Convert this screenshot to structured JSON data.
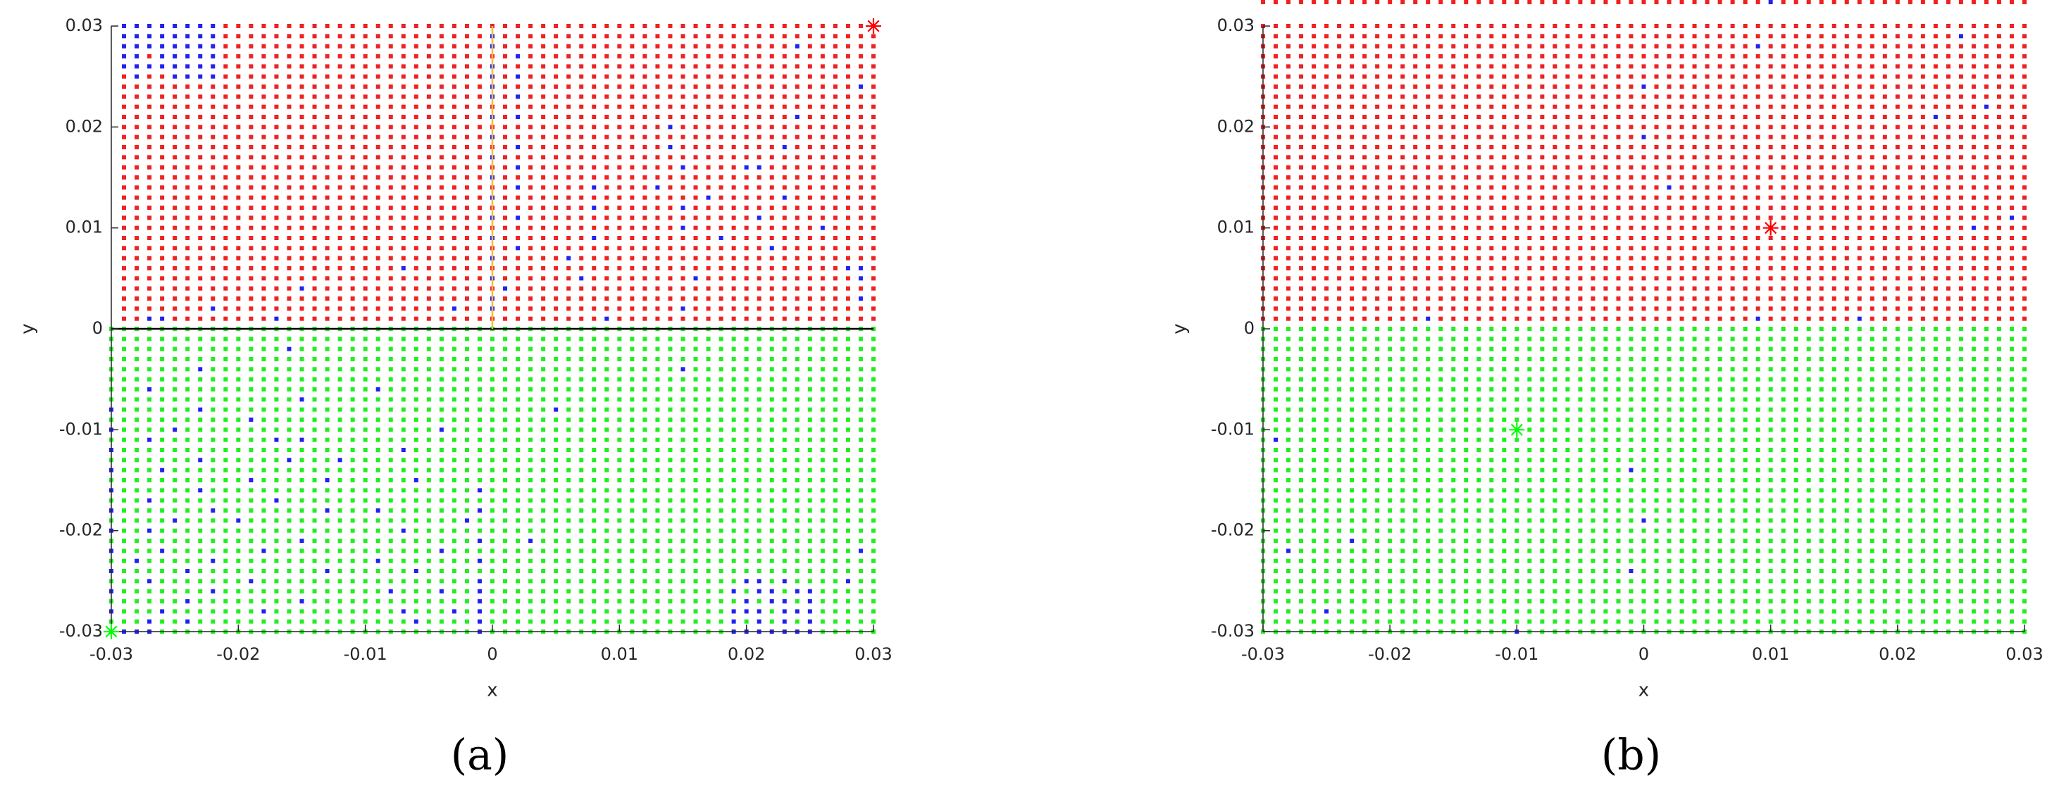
{
  "chart_data": [
    {
      "type": "scatter",
      "label": "(a)",
      "xlabel": "x",
      "ylabel": "y",
      "xlim": [
        -0.03,
        0.03
      ],
      "ylim": [
        -0.03,
        0.03
      ],
      "xticks": [
        -0.03,
        -0.02,
        -0.01,
        0,
        0.01,
        0.02,
        0.03
      ],
      "yticks": [
        -0.03,
        -0.02,
        -0.01,
        0,
        0.01,
        0.02,
        0.03
      ],
      "x": [
        -0.03,
        -0.029,
        -0.028,
        -0.027,
        -0.026,
        -0.025,
        -0.024,
        -0.023,
        -0.022,
        -0.021,
        -0.02,
        -0.019,
        -0.018,
        -0.017,
        -0.016,
        -0.015,
        -0.014,
        -0.013,
        -0.012,
        -0.011,
        -0.01,
        -0.009,
        -0.008,
        -0.007,
        -0.006,
        -0.005,
        -0.004,
        -0.003,
        -0.002,
        -0.001,
        0,
        0.001,
        0.002,
        0.003,
        0.004,
        0.005,
        0.006,
        0.007,
        0.008,
        0.009,
        0.01,
        0.011,
        0.012,
        0.013,
        0.014,
        0.015,
        0.016,
        0.017,
        0.018,
        0.019,
        0.02,
        0.021,
        0.022,
        0.023,
        0.024,
        0.025,
        0.026,
        0.027,
        0.028,
        0.029,
        0.03
      ],
      "y": [
        -0.03,
        -0.029,
        -0.028,
        -0.027,
        -0.026,
        -0.025,
        -0.024,
        -0.023,
        -0.022,
        -0.021,
        -0.02,
        -0.019,
        -0.018,
        -0.017,
        -0.016,
        -0.015,
        -0.014,
        -0.013,
        -0.012,
        -0.011,
        -0.01,
        -0.009,
        -0.008,
        -0.007,
        -0.006,
        -0.005,
        -0.004,
        -0.003,
        -0.002,
        -0.001,
        0,
        0.001,
        0.002,
        0.003,
        0.004,
        0.005,
        0.006,
        0.007,
        0.008,
        0.009,
        0.01,
        0.011,
        0.012,
        0.013,
        0.014,
        0.015,
        0.016,
        0.017,
        0.018,
        0.019,
        0.02,
        0.021,
        0.022,
        0.023,
        0.024,
        0.025,
        0.026,
        0.027,
        0.028,
        0.029,
        0.03
      ],
      "colors": {
        "r": "#ee2222",
        "g": "#22ee22",
        "b": "#2222ee"
      },
      "rows": [
        "gbbbgggggg gggggggggg gggggggggb gggggggggg gggggggggb bbbbbbgggg g",
        "gggbggbggg gggggggggg ggggbggggb gggggggggg gggggggggb gbgbgbgggg g",
        "bgggbggggg ggbggggggg gggbgggbgb gggggggggg gggggggggb bbgbbbgggg g",
        "ggggggbggg gggggbgggg gggggggggb gggggggggg gggggggggg bgbbgbgggg g",
        "bgggggggbg gggggggggg ggbgggbggb gggggggggg gggggggggb gbbgbbgggg g",
        "gggbgggggg gbgggggggg gggggggggb gggggggggg gggggggggg bbgbggggbg g",
        "bgggggbggg gggggggbgg ggggbggggg gggggggggg gggggggggg gggggggggg g",
        "ggbgggggbg gggggggggg gbgggggggb gggggggggg gggggggggg gggggggggg g",
        "bgggbggggg ggbggggggg ggggggbggg gggggggggg gggggggggg gggggggggb g",
        "gggggggggg gggggbgggg gggggggggb gggbgggggg gggggggggg gggggggggg g",
        "bggbgggggg gggggggggg gggbgggggg gggggggggg gggggggggg gggggggggg g",
        "gggggbgggg bggggggggg ggggggggbg gggggggggg gggggggggg gggggggggg g",
        "bgggggggbg gggggggbgg gbgggggggb gggggggggg gggggggggg gggggggggg g",
        "gggbgggggg gggbgggggg gggggggggg gggggggggg gggggggggg gggggggggg g",
        "bggggggbgg gggggggggg gggggggggb gggggggggg gggggggggg gggggggggg g",
        "gggggggggg gbgggggbgg ggggbggggg gggggggggg gggggggggg gggggggggg g",
        "bgggbggggg gggggggggg gggggggggg gggggggggg gggggggggg gggggggggg g",
        "gggggggbgg ggggbgggbg gggggggggg gggggggggg gggggggggg gggggggggg g",
        "bggggggggg gggggggggg gggbgggggg gggggggggg gggggggggg gggggggggg g",
        "gggbgggggg gggbgbgggg gggggggggg gggggggggg gggggggggg gggggggggg g",
        "bggggbgggg gggggggggg ggggggbggg gggggggggg gggggggggg gggggggggg g",
        "gggggggggg gbgggggggg gggggggggg gggggggggg gggggggggg gggggggggg g",
        "bggggggbgg gggggggggg gggggggggg gggggbgggg gggggggggg gggggggggg g",
        "gggggggggg gggggbgggg gggggggggg gggggggggg gggggggggg gggggggggg g",
        "gggbgggggg gggggggggg gbgggggggg gggggggggg gggggggggg gggggggggg g",
        "gggggggggg gggggggggg gggggggggg gggggggggg gggggggggg gggggggggg g",
        "gggggggbgg gggggggggg gggggggggg gggggggggg gggggbgggg gggggggggg g",
        "gggggggggg gggggggggg gggggggggg gggggggggg gggggggggg gggggggggg g",
        "gggggggggg ggggbggggg gggggggggg gggggggggg gggggggggg gggggggggg g",
        "gggggggggg gggggggggg gggggggggg gggggggggg gggggggggg gggggggggg g",
        "gggggggggg gggggggggg gggggggggg gggggggggg gggggggggg gggggggggg g",
        ".rrbbrrrrr rrrbrrrrrr rrrrrrrrrr rrrrrrrrrb rrrrrrrrrr rrrrrrrrrr r",
        ".rrrrrrrbr rrrrrrrrrr rrrrrrrbrr brrrrrrrrr rrrrrbrrrr rrrrrrrrrr r",
        ".rrrrrrrrr rrrrrrrrrr rrrrrrrrrr brrrrrrrrr rrrrrrrrrr rrrrrrrrrb r",
        ".rrrrrrrrr rrrrrbrrrr rrrrrrrrrr rbrrrrrrrr rrrrrrrrrr rrrrrrrrrr r",
        ".rrrrrrrrr rrrrrrrrrr rrrrrrrrrr brrrrrrbrr rrrrrrbrrr rrrrrrrrrb r",
        ".rrrrrrrrr rrrrrrrrrr rrrbrrrrrr rrrrrrrrrr rrrrrrrrrr rrrrrrrrbb r",
        ".rrrrrrrrr rrrrrrrrrr rrrrrrrrrr brrrrrbrrr rrrrrrrrrr rrrrrrrrrr r",
        ".rrrrrrrrr rrrrrrrrrr rrrrrrrrrr rrbrrrrrrr rrrrrrrrrr rrbrrrrrrr r",
        ".rrrrrrrrr rrrrrrrrrr rrrrrrrrrr brrrrrrrbr rrrrrrrrbr rrrrrrrrrr r",
        ".rrrrrrrrr rrrrrrrrrr rrrrrrrrrr rrrrrrrrrr rrrrrbrrrr rrrrrrbrrr r",
        ".rrrrrrrrr rrrrrrrrrr rrrrrrrrrr brbrrrrrrr rrrrrrrrrr rbrrrrrrrr r",
        ".rrrrrrrrr rrrrrrrrrr rrrrrrrrrr rrrrrrrrbr rrrrrbrrrr rrrrrrrrrr r",
        ".rrrrrrrrr rrrrrrrrrr rrrrrrrrrr brrrrrrrrr rrrrrrrbrr rrrbrrrrrr r",
        ".rrrrrrrrr rrrrrrrrrr rrrrrrrrrr rrbrrrrrbr rrrbrrrrrr rrrrrrrrrr r",
        ".rrrrrrrrr rrrrrrrrrr rrrrrrrrrr brrrrrrrrr rrrrrrrrrr rrrrrrrrrr r",
        ".rrrrrrrrr rrrrrrrrrr rrrrrrrrrr rrbrrrrrrr rrrrrbrrrr bbrrrrrrrr r",
        ".rrrrrrrrr rrrrrrrrrr rrrrrrrrrr brrrrrrrrr rrrrrrrrrr rrrrrrrrrr r",
        ".rrrrrrrrr rrrrrrrrrr rrrrrrrrrr rrbrrrrrrr rrrrbrrrrr rrrbrrrrrr r",
        ".rrrrrrrrr rrrrrrrrrr rrrrrrrrrr brrrrrrrrr rrrrrrrrrr rrrrrrrrrr r",
        ".rrrrrrrrr rrrrrrrrrr rrrrrrrrrr rrrrrrrrrr rrrrbrrrrr rrrrrrrrrr r",
        ".rrrrrrrrr rrrrrrrrrr rrrrrrrrrr brbrrrrrrr rrrrrrrrrr rrrrbrrrrr r",
        ".rrrrrrrrr rrrrrrrrrr rrrrrrrrrr rrrrrrrrrr rrrrrrrrrr rrrrrrrrrr r",
        ".rrrrrrrrr rrrrrrrrrr rrrrrrrrrr brbrrrrrrr rrrrrrrrrr rrrrrrrrrr r",
        ".rrrrrrrrr rrrrrrrrrr rrrrrrrrrr brrrrrrrrr rrrrrrrrrr rrrrrrrrrb r",
        ".rbrrbbbbr rrrrrrrrrr rrrrrrrrrr brbrrrrrrr rrrrrrrrrr rrrrrrrrrr r",
        ".bbbbbbbbr rrrrrrrrrr rrrrrrrrrr brrrrrrrrr rrrrrrrrrr rrrrrrrrrr r",
        ".bbrbbbbbr rrrrrrrrrr rrrrrrrrrr rrbrrrrrrr rrrrrrrrrr rrrrrrrrrr r",
        ".bbbbbbbbr rrrrrrrrrr rrrrrrrrrr brrrrrrrrr rrrrrrrrrr rrrrbrrrrr r",
        ".bbbbbbbbr rrrrrrrrrr rrrrrrrrrr brrrrrrrrr rrrrrrrrrr rrrrrrrrrr r",
        ".bbbbbbbbr rrrrrrrrrr rrrrrrrrrr rrrrrrrrrr rrrrrrrrrr rrrrrrrrrr r"
      ],
      "lines": [
        {
          "x": [
            -0.03,
            0.03
          ],
          "y": [
            0,
            0
          ],
          "color": "#000000"
        },
        {
          "x": [
            0,
            0
          ],
          "y": [
            0,
            0.03
          ],
          "color": "#f5b942"
        }
      ],
      "markers": [
        {
          "x": 0.03,
          "y": 0.03,
          "color": "#ff0000"
        },
        {
          "x": -0.03,
          "y": -0.03,
          "color": "#00ff00"
        }
      ]
    },
    {
      "type": "scatter",
      "label": "(b)",
      "xlabel": "x",
      "ylabel": "y",
      "xlim": [
        -0.03,
        0.03
      ],
      "ylim": [
        -0.03,
        0.03
      ],
      "xticks": [
        -0.03,
        -0.02,
        -0.01,
        0,
        0.01,
        0.02,
        0.03
      ],
      "yticks": [
        -0.03,
        -0.02,
        -0.01,
        0,
        0.01,
        0.02,
        0.03
      ],
      "x": [
        -0.03,
        -0.029,
        -0.028,
        -0.027,
        -0.026,
        -0.025,
        -0.024,
        -0.023,
        -0.022,
        -0.021,
        -0.02,
        -0.019,
        -0.018,
        -0.017,
        -0.016,
        -0.015,
        -0.014,
        -0.013,
        -0.012,
        -0.011,
        -0.01,
        -0.009,
        -0.008,
        -0.007,
        -0.006,
        -0.005,
        -0.004,
        -0.003,
        -0.002,
        -0.001,
        0,
        0.001,
        0.002,
        0.003,
        0.004,
        0.005,
        0.006,
        0.007,
        0.008,
        0.009,
        0.01,
        0.011,
        0.012,
        0.013,
        0.014,
        0.015,
        0.016,
        0.017,
        0.018,
        0.019,
        0.02,
        0.021,
        0.022,
        0.023,
        0.024,
        0.025,
        0.026,
        0.027,
        0.028,
        0.029,
        0.03
      ],
      "y": [
        -0.03,
        -0.029,
        -0.028,
        -0.027,
        -0.026,
        -0.025,
        -0.024,
        -0.023,
        -0.022,
        -0.021,
        -0.02,
        -0.019,
        -0.018,
        -0.017,
        -0.016,
        -0.015,
        -0.014,
        -0.013,
        -0.012,
        -0.011,
        -0.01,
        -0.009,
        -0.008,
        -0.007,
        -0.006,
        -0.005,
        -0.004,
        -0.003,
        -0.002,
        -0.001,
        0,
        0.001,
        0.002,
        0.003,
        0.004,
        0.005,
        0.006,
        0.007,
        0.008,
        0.009,
        0.01,
        0.011,
        0.012,
        0.013,
        0.014,
        0.015,
        0.016,
        0.017,
        0.018,
        0.019,
        0.02,
        0.021,
        0.022,
        0.023,
        0.024,
        0.025,
        0.026,
        0.027,
        0.028,
        0.029,
        0.03
      ],
      "colors": {
        "r": "#ee2222",
        "g": "#22ee22",
        "b": "#2222ee"
      },
      "rows": [
        "gggggggggg gggggggggg bggggggggg gggggggggg gggggggggg gggggggggg g",
        "gggggggggg gggggggggg gggggggggg gggggggggg gggggggggg gggggggggg g",
        "gggggbgggg gggggggggg gggggggggg gggggggggg gggggggggg gggggggggg g",
        "gggggggggg gggggggggg gggggggggg gggggggggg gggggggggg gggggggggg g",
        "gggggggggg gggggggggg gggggggggg gggggggggg gggggggggg gggggggggg g",
        "gggggggggg gggggggggg gggggggggg gggggggggg gggggggggg gggggggggg g",
        "gggggggggg gggggggggg gggggggggb gggggggggg gggggggggg gggggggggg g",
        "gggggggggg gggggggggg gggggggggg gggggggggg gggggggggg gggggggggg g",
        "ggbggggggg gggggggggg gggggggggg gggggggggg gggggggggg gggggggggg g",
        "gggggggbgg gggggggggg gggggggggg gggggggggg gggggggggg gggggggggg g",
        "gggggggggg gggggggggg gggggggggg gggggggggg gggggggggg gggggggggg g",
        "gggggggggg gggggggggg gggggggggg bggggggggg gggggggggg gggggggggg g",
        "gggggggggg gggggggggg gggggggggg gggggggggg gggggggggg gggggggggg g",
        "gggggggggg gggggggggg gggggggggg gggggggggg gggggggggg gggggggggg g",
        "gggggggggg gggggggggg gggggggggg gggggggggg gggggggggg gggggggggg g",
        "gggggggggg gggggggggg gggggggggg gggggggggg gggggggggg gggggggggg g",
        "gggggggggg gggggggggg gggggggggb gggggggggg gggggggggg gggggggggg g",
        "gggggggggg gggggggggg gggggggggg gggggggggg gggggggggg gggggggggg g",
        "gggggggggg gggggggggg gggggggggg gggggggggg gggggggggg gggggggggg g",
        "gbgggggggg gggggggggg gggggggggg gggggggggg gggggggggg gggggggggg g",
        "gggggggggg gggggggggg gggggggggg gggggggggg gggggggggg gggggggggg g",
        "gggggggggg gggggggggg gggggggggg gggggggggg gggggggggg gggggggggg g",
        "gggggggggg gggggggggg gggggggggg gggggggggg gggggggggg gggggggggg g",
        "gggggggggg gggggggggg gggggggggg gggggggggg gggggggggg gggggggggg g",
        "gggggggggg gggggggggg gggggggggg gggggggggg gggggggggg gggggggggg g",
        "gggggggggg gggggggggg gggggggggg gggggggggg gggggggggg gggggggggg g",
        "gggggggggg gggggggggg gggggggggg gggggggggg gggggggggg gggggggggg g",
        "gggggggggg gggggggggg gggggggggg gggggggggg gggggggggg gggggggggg g",
        "gggggggggg gggggggggg gggggggggg gggggggggg gggggggggg gggggggggg g",
        "gggggggggg gggggggggg gggggggggg gggggggggg gggggggggg gggggggggg g",
        "gggggggggg gggggggggg gggggggggg gggggggggg gggggggggg gggggggggg g",
        "rrrrrrrrrr rrrbrrrrrr rrrrrrrrrr rrrrrrrrrb rrrrrrrbrr rrrrrrrrrr r",
        "rrrrrrrrrr rrrrrrrrrr rrrrrrrrrr rrrrrrrrrr rrrrrrrrrr rrrrrrrrrr r",
        "rrrrrrrrrr rrrrrrrrrr rrrrrrrrrr rrrrrrrrrr rrrrrrrrrr rrrrrrrrrr r",
        "rrrrrrrrrr rrrrrrrrrr rrrrrrrrrr rrrrrrrrrr rrrrrrrrrr rrrrrrrrrr r",
        "rrrrrrrrrr rrrrrrrrrr rrrrrrrrrr rrrrrrrrrr rrrrrrrrrr rrrrrrrrrr r",
        "rrrrrrrrrr rrrrrrrrrr rrrrrrrrrr rrrrrrrrrr rrrrrrrrrr rrrrrrrrrr r",
        "rrrrrrrrrr rrrrrrrrrr rrrrrrrrrr rrrrrrrrrr rrrrrrrrrr rrrrrrrrrr r",
        "rrrrrrrrrr rrrrrrrrrr rrrrrrrrrr rrrrrrrrrr rrrrrrrrrr rrrrrrrrrr r",
        "rrrrrrrrrr rrrrrrrrrr rrrrrrrrrr rrrrrrrrrr rrrrrrrrrr rrrrrrrrrr r",
        "rrrrrrrrrr rrrrrrrrrr rrrrrrrrrr rrrrrrrrrr rrrrrrrrrr rrrrrrbrrr r",
        "rrrrrrrrrr rrrrrrrrrr rrrrrrrrrr rrrrrrrrrr rrrrrrrrrr rrrrrrrrrb r",
        "rrrrrrrrrr rrrrrrrrrr rrrrrrrrrr rrrrrrrrrr rrrrrrrrrr rrrrrrrrrr r",
        "rrrrrrrrrr rrrrrrrrrr rrrrrrrrrr rrrrrrrrrr rrrrrrrrrr rrrrrrrrrr r",
        "rrrrrrrrrr rrrrrrrrrr rrrrrrrrrr rrbrrrrrrr rrrrrrrrrr rrrrrrrrrr r",
        "rrrrrrrrrr rrrrrrrrrr rrrrrrrrrr rrrrrrrrrr rrrrrrrrrr rrrrrrrrrr r",
        "rrrrrrrrrr rrrrrrrrrr rrrrrrrrrr rrrrrrrrrr rrrrrrrrrr rrrrrrrrrr r",
        "rrrrrrrrrr rrrrrrrrrr rrrrrrrrrr rrrrrrrrrr rrrrrrrrrr rrrrrrrrrr r",
        "rrrrrrrrrr rrrrrrrrrr rrrrrrrrrr rrrrrrrrrr rrrrrrrrrr rrrrrrrrrr r",
        "rrrrrrrrrr rrrrrrrrrr rrrrrrrrrr brrrrrrrrr rrrrrrrrrr rrrrrrrrrr r",
        "rrrrrrrrrr rrrrrrrrrr rrrrrrrrrr rrrrrrrrrr rrrrrrrrrr rrrrrrrrrr r",
        "rrrrrrrrrr rrrrrrrrrr rrrrrrrrrr rrrrrrrrrr rrrrrrrrrr rrrbrrrrrr r",
        "rrrrrrrrrr rrrrrrrrrr rrrrrrrrrr rrrrrrrrrr rrrrrrrrrr rrrrrrrbrr r",
        "rrrrrrrrrr rrrrrrrrrr rrrrrrrrrr rrrrrrrrrr rrrrrrrrrr rrrrrrrrrr r",
        "rrrrrrrrrr rrrrrrrrrr rrrrrrrrrr brrrrrrrrr rrrrrrrrrr rrrrrrrrrr r",
        "rrrrrrrrrr rrrrrrrrrr rrrrrrrrrr rrrrrrrrrr rrrrrrrrrr rrrrrrrrrr r",
        "rrrrrrrrrr rrrrrrrrrr rrrrrrrrrr rrrrrrrrrr rrrrrrrrrr rrrrrrrrrr r",
        "rrrrrrrrrr rrrrrrrrrr rrrrrrrrrr rrrrrrrrrr rrrrrrrrrr rrrrrrrrrr r",
        "rrrrrrrrrr rrrrrrrrrr rrrrrrrrrr rrrrrrrrrb rrrrrrrrrr rrrrrrrrrr r",
        "rrrrrrrrrr rrrrrrrrrr rrrrrrrrrr rrrrrrrrrr rrrrrrrrrr rrrrrbrrrr r",
        "rrrrrrrrrr rrrrrrrrrr rrrrrrrrrr rrrrrrrrrr rrrrrrrrrr rrrrrrrrrr r",
        "rrrrrrrrrr rrrrrrrrrr rrrrrrrrrr rrrrrrrrrr brrrrrrrrr rrrrrrrrrr r"
      ],
      "lines": [],
      "markers": [
        {
          "x": 0.01,
          "y": 0.01,
          "color": "#ff0000"
        },
        {
          "x": -0.01,
          "y": -0.01,
          "color": "#00ff00"
        }
      ]
    }
  ]
}
